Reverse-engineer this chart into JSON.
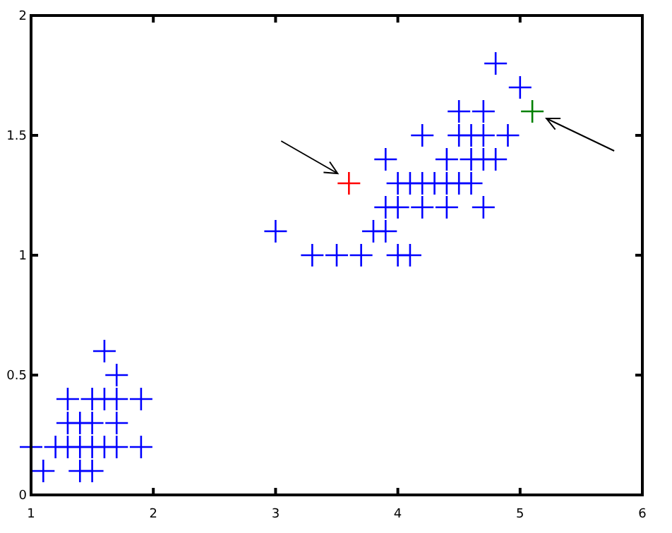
{
  "chart_data": {
    "type": "scatter",
    "marker": "cross",
    "grid": false,
    "xlim": [
      1,
      6
    ],
    "ylim": [
      0,
      2
    ],
    "xticks": [
      1,
      2,
      3,
      4,
      5,
      6
    ],
    "yticks": [
      0,
      0.5,
      1,
      1.5,
      2
    ],
    "series": [
      {
        "color": "#0000ff",
        "x": [
          1.0,
          1.2,
          1.3,
          1.4,
          1.5,
          1.6,
          1.7,
          1.9,
          1.1,
          1.4,
          1.5,
          1.3,
          1.4,
          1.5,
          1.7,
          1.3,
          1.5,
          1.6,
          1.7,
          1.9,
          1.7,
          1.6,
          3.3,
          3.5,
          3.7,
          4.0,
          4.1,
          3.0,
          3.8,
          3.9,
          3.9,
          4.0,
          4.2,
          4.4,
          4.7,
          4.0,
          4.1,
          4.2,
          4.3,
          4.4,
          4.5,
          4.6,
          3.9,
          4.4,
          4.6,
          4.7,
          4.8,
          4.2,
          4.5,
          4.6,
          4.7,
          4.9,
          4.5,
          4.7,
          5.0,
          4.8
        ],
        "values": [
          0.2,
          0.2,
          0.2,
          0.2,
          0.2,
          0.2,
          0.2,
          0.2,
          0.1,
          0.1,
          0.1,
          0.3,
          0.3,
          0.3,
          0.3,
          0.4,
          0.4,
          0.4,
          0.4,
          0.4,
          0.5,
          0.6,
          1.0,
          1.0,
          1.0,
          1.0,
          1.0,
          1.1,
          1.1,
          1.1,
          1.2,
          1.2,
          1.2,
          1.2,
          1.2,
          1.3,
          1.3,
          1.3,
          1.3,
          1.3,
          1.3,
          1.3,
          1.4,
          1.4,
          1.4,
          1.4,
          1.4,
          1.5,
          1.5,
          1.5,
          1.5,
          1.5,
          1.6,
          1.6,
          1.7,
          1.8
        ]
      },
      {
        "color": "#ff0000",
        "x": [
          3.6
        ],
        "values": [
          1.3
        ]
      },
      {
        "color": "#008000",
        "x": [
          5.1
        ],
        "values": [
          1.6
        ]
      }
    ]
  }
}
